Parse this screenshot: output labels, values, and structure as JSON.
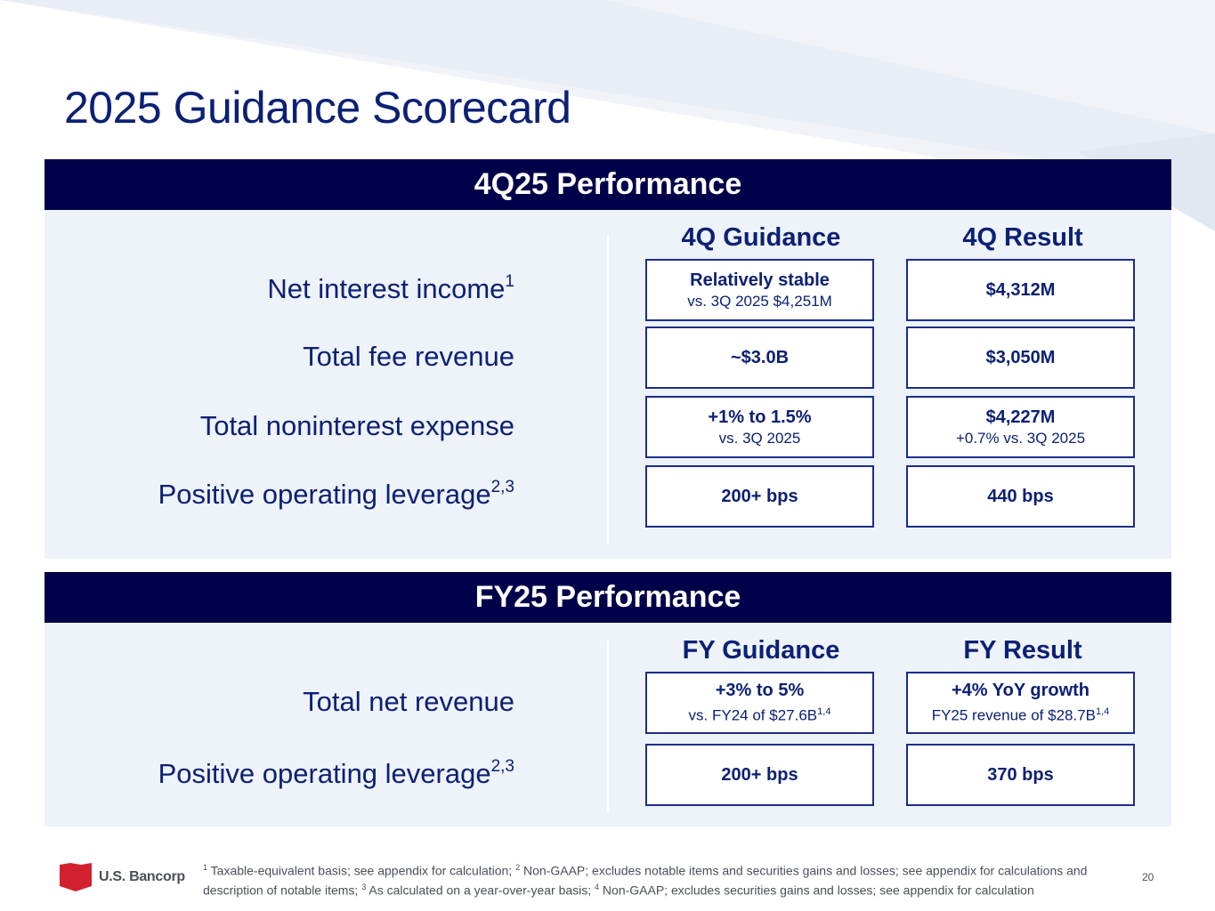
{
  "title": "2025 Guidance Scorecard",
  "quarter": {
    "header": "4Q25 Performance",
    "guidance_col": "4Q Guidance",
    "result_col": "4Q Result",
    "rows": [
      {
        "label": "Net interest income",
        "label_sup": "1",
        "guidance_main": "Relatively stable",
        "guidance_sub": "vs. 3Q 2025 $4,251M",
        "result_main": "$4,312M",
        "result_sub": ""
      },
      {
        "label": "Total fee revenue",
        "label_sup": "",
        "guidance_main": "~$3.0B",
        "guidance_sub": "",
        "result_main": "$3,050M",
        "result_sub": ""
      },
      {
        "label": "Total noninterest expense",
        "label_sup": "",
        "guidance_main": "+1% to 1.5%",
        "guidance_sub": "vs. 3Q 2025",
        "result_main": "$4,227M",
        "result_sub": "+0.7% vs. 3Q 2025"
      },
      {
        "label": "Positive operating leverage",
        "label_sup": "2,3",
        "guidance_main": "200+ bps",
        "guidance_sub": "",
        "result_main": "440 bps",
        "result_sub": ""
      }
    ]
  },
  "fullyear": {
    "header": "FY25 Performance",
    "guidance_col": "FY Guidance",
    "result_col": "FY Result",
    "rows": [
      {
        "label": "Total net revenue",
        "label_sup": "",
        "guidance_main": "+3% to 5%",
        "guidance_sub": "vs. FY24 of $27.6B",
        "guidance_sub_sup": "1,4",
        "result_main": "+4% YoY growth",
        "result_sub": "FY25 revenue of $28.7B",
        "result_sub_sup": "1,4"
      },
      {
        "label": "Positive operating leverage",
        "label_sup": "2,3",
        "guidance_main": "200+ bps",
        "guidance_sub": "",
        "guidance_sub_sup": "",
        "result_main": "370 bps",
        "result_sub": "",
        "result_sub_sup": ""
      }
    ]
  },
  "footer": {
    "logo_text": "U.S. Bancorp",
    "footnotes": [
      {
        "num": "1",
        "text": " Taxable-equivalent basis; see appendix for calculation; "
      },
      {
        "num": "2",
        "text": " Non-GAAP; excludes notable items and securities gains and losses; see appendix for calculations and description of notable items; "
      },
      {
        "num": "3",
        "text": " As calculated on a year-over-year basis; "
      },
      {
        "num": "4",
        "text": " Non-GAAP; excludes securities gains and losses; see appendix for calculation"
      }
    ],
    "page_number": "20"
  },
  "colors": {
    "header_bg": "#00004a",
    "panel_bg": "#eef2f9",
    "title_text": "#0c2074",
    "box_border": "#1b2d8a",
    "logo_red": "#d2202f"
  }
}
